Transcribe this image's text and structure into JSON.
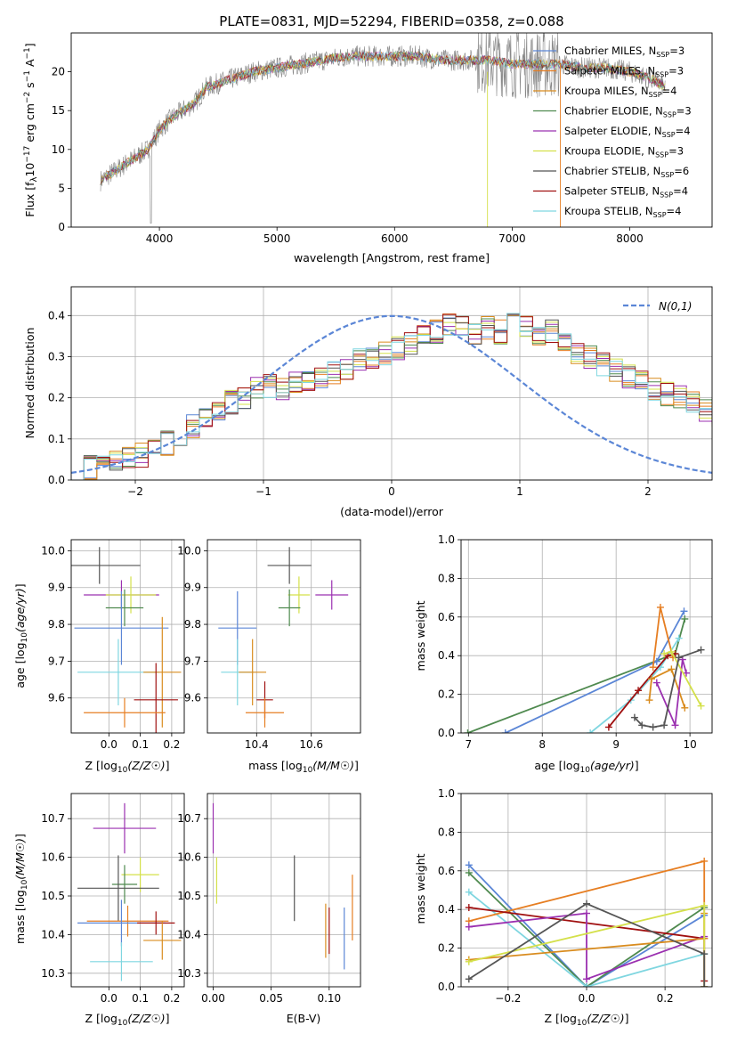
{
  "figure": {
    "title": "PLATE=0831, MJD=52294, FIBERID=0358, z=0.088"
  },
  "models": [
    {
      "label": "Chabrier MILES, N",
      "sub": "SSP",
      "suffix": "=3",
      "color": "#5b86d6"
    },
    {
      "label": "Salpeter MILES, N",
      "sub": "SSP",
      "suffix": "=3",
      "color": "#e67e22"
    },
    {
      "label": "Kroupa MILES, N",
      "sub": "SSP",
      "suffix": "=4",
      "color": "#d98c1f"
    },
    {
      "label": "Chabrier ELODIE, N",
      "sub": "SSP",
      "suffix": "=3",
      "color": "#4f8a4f"
    },
    {
      "label": "Salpeter ELODIE, N",
      "sub": "SSP",
      "suffix": "=4",
      "color": "#9b30b0"
    },
    {
      "label": "Kroupa ELODIE, N",
      "sub": "SSP",
      "suffix": "=3",
      "color": "#d4e04a"
    },
    {
      "label": "Chabrier STELIB, N",
      "sub": "SSP",
      "suffix": "=6",
      "color": "#555555"
    },
    {
      "label": "Salpeter STELIB, N",
      "sub": "SSP",
      "suffix": "=4",
      "color": "#a01010"
    },
    {
      "label": "Kroupa STELIB, N",
      "sub": "SSP",
      "suffix": "=4",
      "color": "#7fd6e0"
    }
  ],
  "chart_data": [
    {
      "id": "spectrum",
      "type": "line",
      "xlabel": "wavelength [Angstrom, rest frame]",
      "ylabel": "Flux [f",
      "ylabel_full": "Flux [fλ10⁻¹⁷ erg cm⁻² s⁻¹ A⁻¹]",
      "xlim": [
        3250,
        8700
      ],
      "ylim": [
        0,
        25
      ],
      "xticks": [
        4000,
        5000,
        6000,
        7000,
        8000
      ],
      "yticks": [
        0,
        5,
        10,
        15,
        20
      ],
      "legend": "right",
      "continuum": {
        "x": [
          3500,
          3700,
          3900,
          4000,
          4100,
          4200,
          4300,
          4400,
          4600,
          4800,
          5000,
          5200,
          5400,
          5600,
          5800,
          6000,
          6200,
          6400,
          6600,
          6800,
          7000,
          7200,
          7400,
          7600,
          7800,
          8000,
          8200,
          8300
        ],
        "y": [
          6,
          8,
          10,
          12.5,
          14,
          15,
          16,
          18,
          19,
          20,
          20.5,
          21,
          21.5,
          22,
          22,
          22,
          22,
          21.5,
          21.5,
          21.5,
          21,
          21,
          21,
          20.5,
          20.5,
          20,
          19,
          18
        ]
      }
    },
    {
      "id": "residuals",
      "type": "histogram",
      "xlabel": "(data-model)/error",
      "ylabel": "Normed distribution",
      "xlim": [
        -2.5,
        2.5
      ],
      "ylim": [
        0,
        0.47
      ],
      "xticks": [
        -2,
        -1,
        0,
        1,
        2
      ],
      "yticks": [
        0.0,
        0.1,
        0.2,
        0.3,
        0.4
      ],
      "grid": true,
      "legend_entry": "N(0,1)",
      "legend": "top-right",
      "bin_edges_start": -2.5,
      "bin_width": 0.1,
      "base_values": [
        0.02,
        0.03,
        0.04,
        0.05,
        0.05,
        0.06,
        0.07,
        0.09,
        0.11,
        0.13,
        0.15,
        0.17,
        0.19,
        0.2,
        0.22,
        0.23,
        0.22,
        0.24,
        0.24,
        0.25,
        0.26,
        0.27,
        0.29,
        0.3,
        0.31,
        0.32,
        0.33,
        0.35,
        0.36,
        0.38,
        0.37,
        0.36,
        0.37,
        0.36,
        0.38,
        0.37,
        0.35,
        0.36,
        0.33,
        0.31,
        0.3,
        0.28,
        0.27,
        0.25,
        0.24,
        0.22,
        0.21,
        0.2,
        0.19,
        0.17,
        0.16,
        0.14,
        0.13,
        0.12,
        0.11,
        0.1,
        0.08,
        0.07,
        0.06,
        0.05,
        0.04,
        0.03
      ]
    },
    {
      "id": "age-vs-Z",
      "type": "scatter",
      "xlabel": "Z [log",
      "xlabel_full": "Z [log10(Z/Z☉)]",
      "ylabel": "age  [log",
      "ylabel_full": "age [log10(age/yr)]",
      "xlim": [
        -0.12,
        0.24
      ],
      "ylim": [
        9.505,
        10.03
      ],
      "xticks": [
        0.0,
        0.1,
        0.2
      ],
      "yticks": [
        9.6,
        9.7,
        9.8,
        9.9,
        10.0
      ],
      "grid": true,
      "points": [
        {
          "m": 6,
          "x": -0.03,
          "y": 9.96,
          "xerr": 0.13,
          "yerr": 0.05
        },
        {
          "m": 4,
          "x": 0.04,
          "y": 9.88,
          "xerr": 0.12,
          "yerr": 0.04
        },
        {
          "m": 5,
          "x": 0.07,
          "y": 9.88,
          "xerr": 0.08,
          "yerr": 0.05
        },
        {
          "m": 3,
          "x": 0.05,
          "y": 9.845,
          "xerr": 0.06,
          "yerr": 0.05
        },
        {
          "m": 0,
          "x": 0.04,
          "y": 9.79,
          "xerr": 0.15,
          "yerr": 0.1
        },
        {
          "m": 8,
          "x": 0.03,
          "y": 9.67,
          "xerr": 0.13,
          "yerr": 0.09
        },
        {
          "m": 2,
          "x": 0.17,
          "y": 9.67,
          "xerr": 0.06,
          "yerr": 0.15
        },
        {
          "m": 7,
          "x": 0.15,
          "y": 9.595,
          "xerr": 0.07,
          "yerr": 0.1
        },
        {
          "m": 1,
          "x": 0.05,
          "y": 9.56,
          "xerr": 0.13,
          "yerr": 0.04
        }
      ]
    },
    {
      "id": "age-vs-mass",
      "type": "scatter",
      "xlabel": "mass [log",
      "xlabel_full": "mass [log10(M/M☉)]",
      "xlim": [
        10.22,
        10.78
      ],
      "ylim": [
        9.505,
        10.03
      ],
      "xticks": [
        10.4,
        10.6
      ],
      "yticks": [
        9.6,
        9.7,
        9.8,
        9.9,
        10.0
      ],
      "grid": true,
      "points": [
        {
          "m": 6,
          "x": 10.52,
          "y": 9.96,
          "xerr": 0.08,
          "yerr": 0.05
        },
        {
          "m": 4,
          "x": 10.675,
          "y": 9.88,
          "xerr": 0.06,
          "yerr": 0.04
        },
        {
          "m": 5,
          "x": 10.555,
          "y": 9.88,
          "xerr": 0.04,
          "yerr": 0.05
        },
        {
          "m": 3,
          "x": 10.52,
          "y": 9.845,
          "xerr": 0.04,
          "yerr": 0.05
        },
        {
          "m": 0,
          "x": 10.33,
          "y": 9.79,
          "xerr": 0.07,
          "yerr": 0.1
        },
        {
          "m": 8,
          "x": 10.33,
          "y": 9.67,
          "xerr": 0.06,
          "yerr": 0.09
        },
        {
          "m": 2,
          "x": 10.385,
          "y": 9.67,
          "xerr": 0.05,
          "yerr": 0.09
        },
        {
          "m": 7,
          "x": 10.43,
          "y": 9.595,
          "xerr": 0.03,
          "yerr": 0.05
        },
        {
          "m": 1,
          "x": 10.43,
          "y": 9.56,
          "xerr": 0.07,
          "yerr": 0.04
        }
      ]
    },
    {
      "id": "massweight-vs-age",
      "type": "line",
      "xlabel": "age  [log",
      "xlabel_full": "age [log10(age/yr)]",
      "ylabel": "mass weight",
      "xlim": [
        6.9,
        10.3
      ],
      "ylim": [
        0,
        1
      ],
      "xticks": [
        7,
        8,
        9,
        10
      ],
      "yticks": [
        0.0,
        0.2,
        0.4,
        0.6,
        0.8,
        1.0
      ],
      "grid": true,
      "series": [
        {
          "m": 3,
          "x": [
            6.99,
            9.8,
            9.93
          ],
          "y": [
            0.0,
            0.41,
            0.59
          ]
        },
        {
          "m": 0,
          "x": [
            7.5,
            9.55,
            9.92
          ],
          "y": [
            0.0,
            0.37,
            0.63
          ]
        },
        {
          "m": 8,
          "x": [
            8.65,
            9.2,
            9.6,
            9.85
          ],
          "y": [
            0.0,
            0.17,
            0.34,
            0.49
          ]
        },
        {
          "m": 7,
          "x": [
            8.9,
            9.3,
            9.7,
            9.8
          ],
          "y": [
            0.03,
            0.22,
            0.4,
            0.41
          ]
        },
        {
          "m": 2,
          "x": [
            9.45,
            9.48,
            9.75,
            9.93
          ],
          "y": [
            0.17,
            0.28,
            0.33,
            0.13
          ]
        },
        {
          "m": 1,
          "x": [
            9.5,
            9.6,
            9.77
          ],
          "y": [
            0.34,
            0.65,
            0.39
          ]
        },
        {
          "m": 4,
          "x": [
            9.55,
            9.8,
            9.9,
            9.95
          ],
          "y": [
            0.26,
            0.04,
            0.38,
            0.31
          ]
        },
        {
          "m": 5,
          "x": [
            9.65,
            9.75,
            10.15
          ],
          "y": [
            0.41,
            0.42,
            0.14
          ]
        },
        {
          "m": 6,
          "x": [
            9.25,
            9.35,
            9.5,
            9.65,
            9.85,
            10.15
          ],
          "y": [
            0.08,
            0.04,
            0.03,
            0.04,
            0.39,
            0.43
          ]
        }
      ]
    },
    {
      "id": "mass-vs-Z",
      "type": "scatter",
      "xlabel": "Z [log",
      "xlabel_full": "Z [log10(Z/Z☉)]",
      "ylabel": "mass [log",
      "ylabel_full": "mass [log10(M/M☉)]",
      "xlim": [
        -0.12,
        0.24
      ],
      "ylim": [
        10.265,
        10.765
      ],
      "xticks": [
        0.0,
        0.1,
        0.2
      ],
      "yticks": [
        10.3,
        10.4,
        10.5,
        10.6,
        10.7
      ],
      "grid": true,
      "points": [
        {
          "m": 4,
          "x": 0.05,
          "y": 10.675,
          "xerr": 0.1,
          "yerr": 0.065
        },
        {
          "m": 5,
          "x": 0.1,
          "y": 10.555,
          "xerr": 0.06,
          "yerr": 0.045
        },
        {
          "m": 3,
          "x": 0.05,
          "y": 10.53,
          "xerr": 0.04,
          "yerr": 0.05
        },
        {
          "m": 6,
          "x": 0.03,
          "y": 10.52,
          "xerr": 0.13,
          "yerr": 0.085
        },
        {
          "m": 1,
          "x": 0.06,
          "y": 10.435,
          "xerr": 0.13,
          "yerr": 0.04
        },
        {
          "m": 0,
          "x": 0.04,
          "y": 10.43,
          "xerr": 0.14,
          "yerr": 0.06
        },
        {
          "m": 7,
          "x": 0.15,
          "y": 10.43,
          "xerr": 0.06,
          "yerr": 0.03
        },
        {
          "m": 2,
          "x": 0.17,
          "y": 10.385,
          "xerr": 0.06,
          "yerr": 0.05
        },
        {
          "m": 8,
          "x": 0.04,
          "y": 10.33,
          "xerr": 0.1,
          "yerr": 0.05
        }
      ]
    },
    {
      "id": "mass-vs-ebv",
      "type": "scatter",
      "xlabel": "E(B-V)",
      "xlim": [
        -0.005,
        0.127
      ],
      "ylim": [
        10.265,
        10.765
      ],
      "xticks": [
        0.0,
        0.05,
        0.1
      ],
      "yticks": [
        10.3,
        10.4,
        10.5,
        10.6,
        10.7
      ],
      "grid": true,
      "points": [
        {
          "m": 4,
          "x": 0.0,
          "y": 10.675,
          "xerr": 0.0,
          "yerr": 0.065
        },
        {
          "m": 5,
          "x": 0.003,
          "y": 10.54,
          "xerr": 0.0,
          "yerr": 0.06
        },
        {
          "m": 6,
          "x": 0.07,
          "y": 10.52,
          "xerr": 0.0,
          "yerr": 0.085
        },
        {
          "m": 1,
          "x": 0.12,
          "y": 10.47,
          "xerr": 0.0,
          "yerr": 0.085
        },
        {
          "m": 2,
          "x": 0.097,
          "y": 10.41,
          "xerr": 0.0,
          "yerr": 0.07
        },
        {
          "m": 7,
          "x": 0.1,
          "y": 10.41,
          "xerr": 0.0,
          "yerr": 0.06
        },
        {
          "m": 0,
          "x": 0.113,
          "y": 10.39,
          "xerr": 0.0,
          "yerr": 0.08
        }
      ]
    },
    {
      "id": "massweight-vs-Z",
      "type": "line",
      "xlabel": "Z [log",
      "xlabel_full": "Z [log10(Z/Z☉)]",
      "ylabel": "mass weight",
      "xlim": [
        -0.32,
        0.32
      ],
      "ylim": [
        0,
        1
      ],
      "xticks": [
        -0.2,
        0.0,
        0.2
      ],
      "yticks": [
        0.0,
        0.2,
        0.4,
        0.6,
        0.8,
        1.0
      ],
      "grid": true,
      "series": [
        {
          "m": 0,
          "x": [
            -0.3,
            0.0,
            0.3
          ],
          "y": [
            0.63,
            0.0,
            0.37
          ]
        },
        {
          "m": 3,
          "x": [
            -0.3,
            0.0,
            0.3
          ],
          "y": [
            0.59,
            0.0,
            0.41
          ]
        },
        {
          "m": 8,
          "x": [
            -0.3,
            0.0,
            0.3
          ],
          "y": [
            0.49,
            0.0,
            0.17
          ]
        },
        {
          "m": 1,
          "x": [
            -0.3,
            0.3,
            0.3
          ],
          "y": [
            0.34,
            0.65,
            0.0
          ]
        },
        {
          "m": 7,
          "x": [
            -0.3,
            0.3,
            0.3
          ],
          "y": [
            0.41,
            0.25,
            0.03
          ]
        },
        {
          "m": 4,
          "x": [
            -0.3,
            0.0,
            0.0,
            0.3
          ],
          "y": [
            0.31,
            0.38,
            0.04,
            0.26
          ]
        },
        {
          "m": 2,
          "x": [
            -0.3,
            0.3,
            0.3
          ],
          "y": [
            0.14,
            0.25,
            0.38
          ]
        },
        {
          "m": 5,
          "x": [
            -0.3,
            0.3,
            0.3
          ],
          "y": [
            0.13,
            0.42,
            0.0
          ]
        },
        {
          "m": 6,
          "x": [
            -0.3,
            0.0,
            0.3,
            0.3
          ],
          "y": [
            0.04,
            0.43,
            0.17,
            0.0
          ]
        }
      ]
    }
  ]
}
